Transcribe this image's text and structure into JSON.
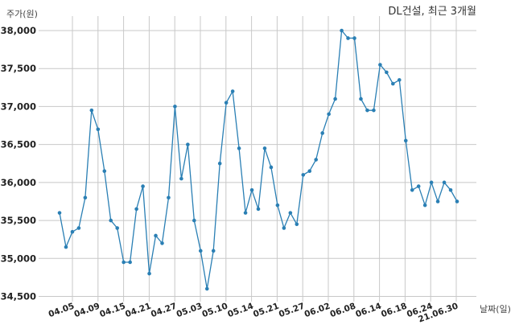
{
  "chart_data": {
    "type": "line",
    "title": "DL건설, 최근 3개월",
    "xlabel": "날짜(일)",
    "ylabel": "주가(원)",
    "ylim": [
      34500,
      38000
    ],
    "yticks": [
      34500,
      35000,
      35500,
      36000,
      36500,
      37000,
      37500,
      38000
    ],
    "ytick_labels": [
      "34,500",
      "35,000",
      "35,500",
      "36,000",
      "36,500",
      "37,000",
      "37,500",
      "38,000"
    ],
    "xtick_labels": [
      "04.05",
      "04.09",
      "04.15",
      "04.21",
      "04.27",
      "05.03",
      "05.10",
      "05.14",
      "05.21",
      "05.27",
      "06.02",
      "06.08",
      "06.14",
      "06.18",
      "06.24",
      "21.06.30"
    ],
    "grid": true,
    "series": [
      {
        "color": "#2a7fb4",
        "values": [
          35600,
          35150,
          35350,
          35400,
          35800,
          36950,
          36700,
          36150,
          35500,
          35400,
          34950,
          34950,
          35650,
          35950,
          34800,
          35300,
          35200,
          35800,
          37000,
          36050,
          36500,
          35500,
          35100,
          34600,
          35100,
          36250,
          37050,
          37200,
          36450,
          35600,
          35900,
          35650,
          36450,
          36200,
          35700,
          35400,
          35600,
          35450,
          36100,
          36150,
          36300,
          36650,
          36900,
          37100,
          38000,
          37900,
          37900,
          37100,
          36950,
          36950,
          37550,
          37450,
          37300,
          37350,
          36550,
          35900,
          35950,
          35700,
          36000,
          35750,
          36000,
          35900,
          35750
        ]
      }
    ]
  }
}
